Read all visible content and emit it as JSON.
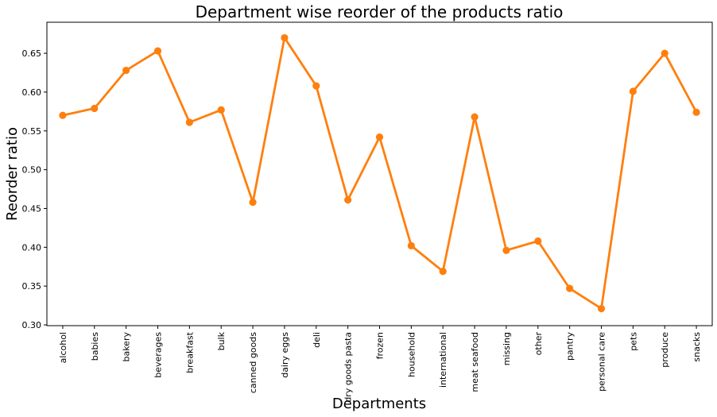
{
  "chart_data": {
    "type": "line",
    "title": "Department wise reorder of the products ratio",
    "xlabel": "Departments",
    "ylabel": "Reorder ratio",
    "categories": [
      "alcohol",
      "babies",
      "bakery",
      "beverages",
      "breakfast",
      "bulk",
      "canned goods",
      "dairy eggs",
      "deli",
      "dry goods pasta",
      "frozen",
      "household",
      "international",
      "meat seafood",
      "missing",
      "other",
      "pantry",
      "personal care",
      "pets",
      "produce",
      "snacks"
    ],
    "values": [
      0.57,
      0.579,
      0.628,
      0.653,
      0.561,
      0.577,
      0.458,
      0.67,
      0.608,
      0.461,
      0.542,
      0.402,
      0.369,
      0.568,
      0.396,
      0.408,
      0.347,
      0.321,
      0.601,
      0.65,
      0.574
    ],
    "ylim": [
      0.299,
      0.69
    ],
    "yticks": [
      "0.30",
      "0.35",
      "0.40",
      "0.45",
      "0.50",
      "0.55",
      "0.60",
      "0.65"
    ],
    "grid": false,
    "color": "#ff7f0e"
  }
}
